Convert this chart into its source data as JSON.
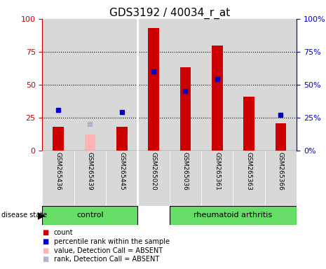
{
  "title": "GDS3192 / 40034_r_at",
  "samples": [
    "GSM265436",
    "GSM265439",
    "GSM265445",
    "GSM265020",
    "GSM265036",
    "GSM265361",
    "GSM265363",
    "GSM265366"
  ],
  "red_bars": [
    18,
    0,
    18,
    93,
    63,
    80,
    41,
    21
  ],
  "pink_bars": [
    0,
    12,
    0,
    0,
    0,
    0,
    0,
    0
  ],
  "blue_squares": [
    31,
    0,
    29,
    60,
    45,
    54,
    0,
    27
  ],
  "lavender_squares": [
    0,
    20,
    0,
    0,
    0,
    0,
    0,
    0
  ],
  "control_indices": [
    0,
    1,
    2
  ],
  "ra_indices": [
    3,
    4,
    5,
    6,
    7
  ],
  "ylim": [
    0,
    100
  ],
  "yticks": [
    0,
    25,
    50,
    75,
    100
  ],
  "bar_color_red": "#cc0000",
  "bar_color_pink": "#ffb3b3",
  "square_color_blue": "#0000cc",
  "square_color_lavender": "#b3b3cc",
  "group_bg": "#66dd66",
  "axis_bg": "#d8d8d8",
  "title_fontsize": 11,
  "legend_items": [
    {
      "label": "count",
      "color": "#cc0000"
    },
    {
      "label": "percentile rank within the sample",
      "color": "#0000cc"
    },
    {
      "label": "value, Detection Call = ABSENT",
      "color": "#ffb3b3"
    },
    {
      "label": "rank, Detection Call = ABSENT",
      "color": "#b3b3cc"
    }
  ]
}
